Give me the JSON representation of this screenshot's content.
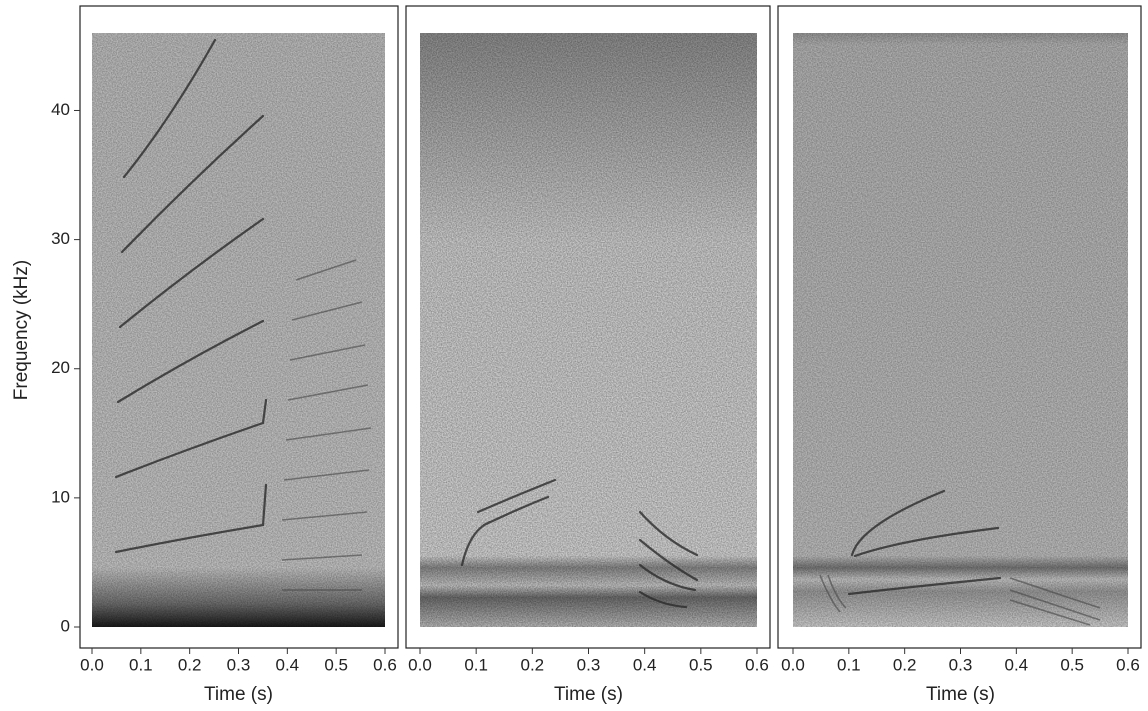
{
  "chart_data": [
    {
      "type": "spectrogram",
      "ylabel": "Frequency (kHz)",
      "xlabel": "Time (s)",
      "xlim": [
        0,
        0.6
      ],
      "xticks": [
        {
          "value": 0,
          "label": "0.0"
        },
        0.1,
        0.2,
        0.3,
        0.4,
        0.5,
        0.6
      ],
      "ylim": [
        0,
        46
      ],
      "yticks": [
        0,
        10,
        20,
        30,
        40
      ]
    },
    {
      "type": "spectrogram",
      "xlabel": "Time (s)",
      "xlim": [
        0,
        0.6
      ],
      "xticks": [
        {
          "value": 0,
          "label": "0.0"
        },
        0.1,
        0.2,
        0.3,
        0.4,
        0.5,
        0.6
      ],
      "ylim": [
        0,
        46
      ]
    },
    {
      "type": "spectrogram",
      "xlabel": "Time (s)",
      "xlim": [
        0,
        0.6
      ],
      "xticks": [
        {
          "value": 0,
          "label": "0.0"
        },
        0.1,
        0.2,
        0.3,
        0.4,
        0.5,
        0.6
      ],
      "ylim": [
        0,
        46
      ]
    }
  ]
}
